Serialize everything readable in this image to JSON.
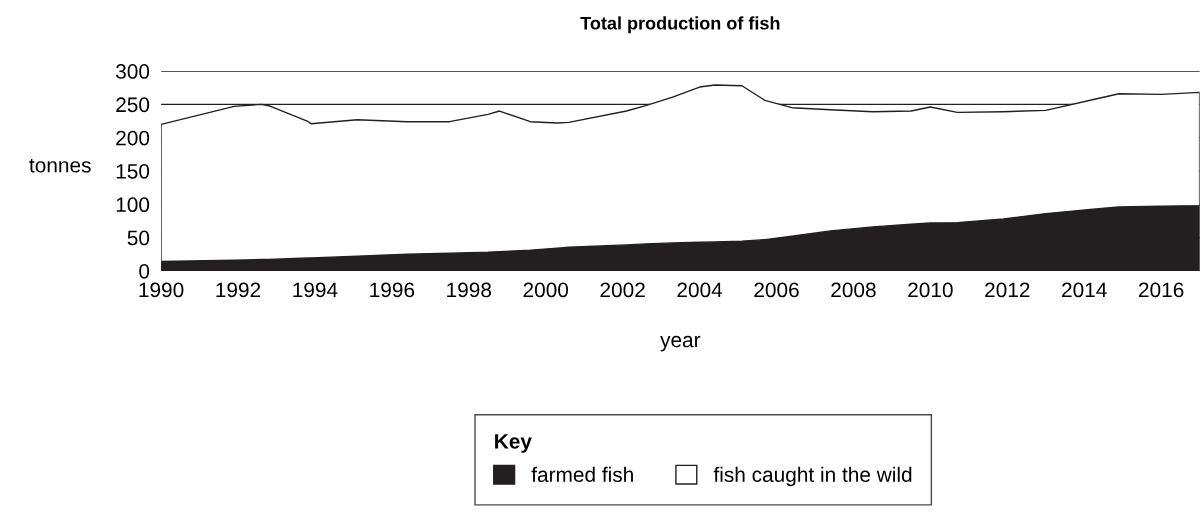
{
  "chart_data": {
    "type": "area",
    "title": "Total production of fish",
    "xlabel": "year",
    "ylabel": "tonnes",
    "x": [
      1990.0,
      1991.9,
      1992.6,
      1992.8,
      1993.8,
      1993.9,
      1995.1,
      1996.4,
      1997.5,
      1998.5,
      1998.8,
      1999.6,
      2000.3,
      2000.6,
      2002.1,
      2002.6,
      2003.3,
      2004.0,
      2004.4,
      2005.1,
      2005.7,
      2006.4,
      2007.4,
      2008.5,
      2009.5,
      2010.0,
      2010.7,
      2011.9,
      2013.0,
      2014.3,
      2014.9,
      2016.0,
      2017.0
    ],
    "stacked": true,
    "series": [
      {
        "name": "farmed fish",
        "color": "#231f20",
        "values": [
          14,
          16,
          17,
          17,
          19.5,
          19.5,
          22,
          25,
          26.5,
          28,
          29,
          31,
          34,
          35.5,
          39,
          40.5,
          42,
          43,
          43.5,
          44.5,
          47,
          52,
          60,
          66,
          70,
          72,
          72.5,
          78,
          86,
          93,
          96,
          97,
          98
        ]
      },
      {
        "name": "fish caught in the wild",
        "color": "#ffffff",
        "values": [
          206,
          231,
          233,
          231,
          205.5,
          201.5,
          205,
          199,
          197.5,
          207,
          211,
          193,
          188,
          187.5,
          201,
          207.5,
          219,
          233,
          235.5,
          233.5,
          209,
          193,
          182,
          173,
          170,
          174,
          165.5,
          161,
          155,
          165,
          170,
          168,
          170
        ]
      }
    ],
    "xlim": [
      1990,
      2017
    ],
    "xticks": [
      1990,
      1992,
      1994,
      1996,
      1998,
      2000,
      2002,
      2004,
      2006,
      2008,
      2010,
      2012,
      2014,
      2016
    ],
    "ylim": [
      0,
      300
    ],
    "yticks": [
      0,
      50,
      100,
      150,
      200,
      250,
      300
    ],
    "grid": "y",
    "legend": "bottom",
    "legend_title": "Key"
  }
}
